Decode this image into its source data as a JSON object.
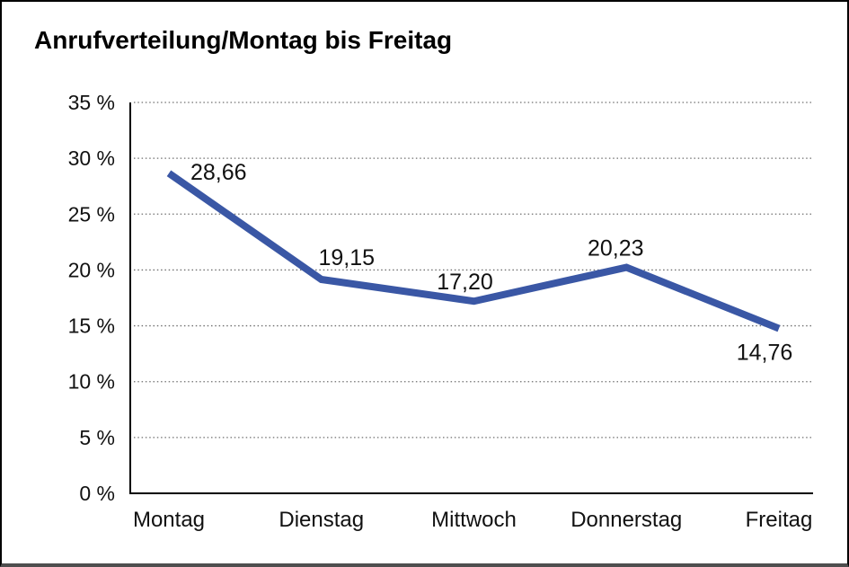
{
  "chart_data": {
    "type": "line",
    "title": "Anrufverteilung/Montag bis Freitag",
    "categories": [
      "Montag",
      "Dienstag",
      "Mittwoch",
      "Donnerstag",
      "Freitag"
    ],
    "values": [
      28.66,
      19.15,
      17.2,
      20.23,
      14.76
    ],
    "value_labels": [
      "28,66",
      "19,15",
      "17,20",
      "20,23",
      "14,76"
    ],
    "xlabel": "",
    "ylabel": "",
    "ylim": [
      0,
      35
    ],
    "y_ticks": [
      0,
      5,
      10,
      15,
      20,
      25,
      30,
      35
    ],
    "y_tick_labels": [
      "0 %",
      "5 %",
      "10 %",
      "15 %",
      "20 %",
      "25 %",
      "30 %",
      "35 %"
    ],
    "grid": "horizontal-dotted",
    "legend_position": "none",
    "line_color": "#3A57A5",
    "axis_color": "#000000",
    "gridline_color": "#6f6f6f",
    "text_color": "#111111",
    "background": "#ffffff"
  }
}
